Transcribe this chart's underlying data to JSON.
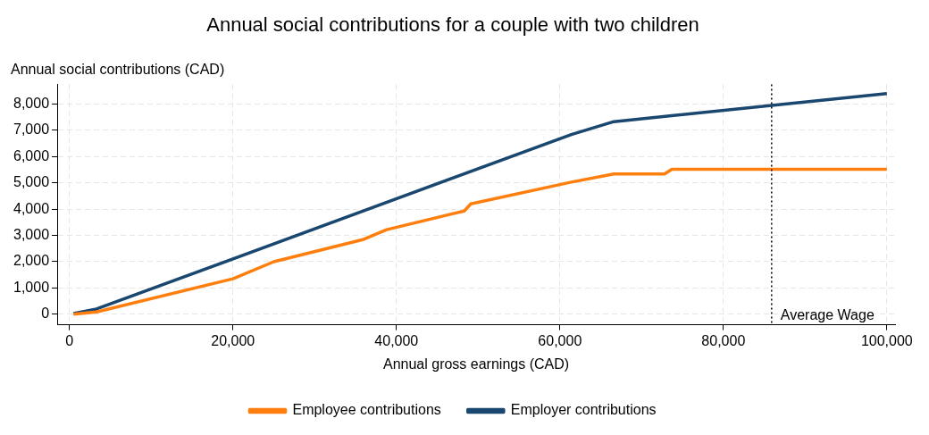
{
  "chart_data": {
    "type": "line",
    "title": "Annual social contributions for a couple with two children",
    "xlabel": "Annual gross earnings (CAD)",
    "ylabel": "Annual social contributions (CAD)",
    "series": [
      {
        "name": "Employee contributions",
        "color": "#ff7f0e",
        "x": [
          500,
          3300,
          20000,
          25000,
          36000,
          38800,
          48300,
          49100,
          61400,
          66600,
          72800,
          73700,
          100000
        ],
        "values": [
          0,
          90,
          1350,
          2000,
          2850,
          3220,
          3930,
          4200,
          5030,
          5340,
          5340,
          5520,
          5520
        ]
      },
      {
        "name": "Employer contributions",
        "color": "#1a476f",
        "x": [
          500,
          3300,
          61400,
          66600,
          100000
        ],
        "values": [
          30,
          200,
          6840,
          7330,
          8400
        ]
      }
    ],
    "xlim": [
      -1500,
      101000
    ],
    "xticks": [
      {
        "value": 0,
        "label": "0"
      },
      {
        "value": 20000,
        "label": "20,000"
      },
      {
        "value": 40000,
        "label": "40,000"
      },
      {
        "value": 60000,
        "label": "60,000"
      },
      {
        "value": 80000,
        "label": "80,000"
      },
      {
        "value": 100000,
        "label": "100,000"
      }
    ],
    "ylim": [
      -400,
      8750
    ],
    "yticks": [
      {
        "value": 0,
        "label": "0"
      },
      {
        "value": 1000,
        "label": "1,000"
      },
      {
        "value": 2000,
        "label": "2,000"
      },
      {
        "value": 3000,
        "label": "3,000"
      },
      {
        "value": 4000,
        "label": "4,000"
      },
      {
        "value": 5000,
        "label": "5,000"
      },
      {
        "value": 6000,
        "label": "6,000"
      },
      {
        "value": 7000,
        "label": "7,000"
      },
      {
        "value": 8000,
        "label": "8,000"
      }
    ],
    "ref_lines": [
      {
        "axis": "x",
        "value": 85900,
        "label": "Average Wage",
        "color": "#000000",
        "line_style": "dotted"
      }
    ],
    "grid": true,
    "legend": "bottom",
    "marker": "none",
    "line_style": "solid"
  }
}
